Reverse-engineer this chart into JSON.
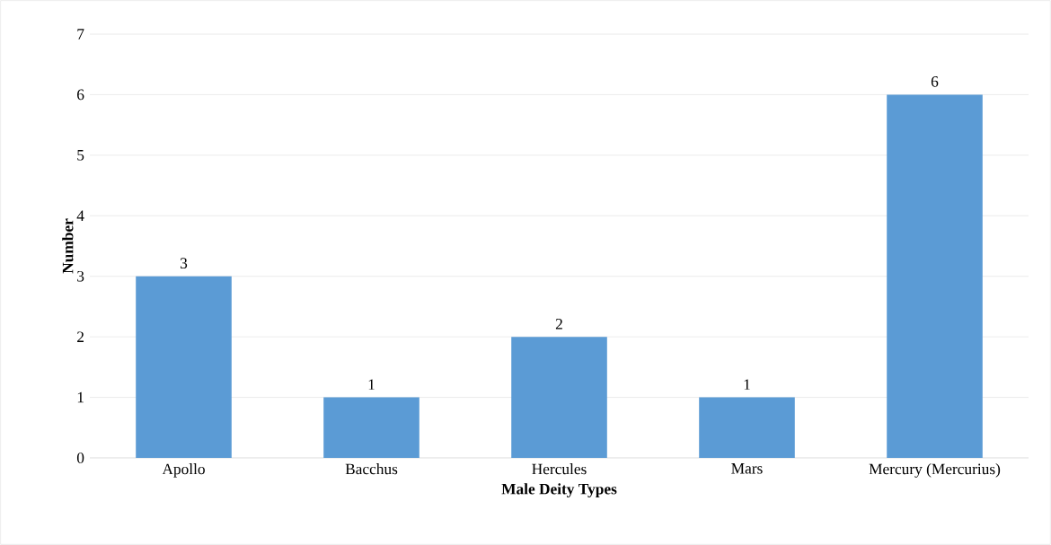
{
  "chart_data": {
    "type": "bar",
    "xlabel": "Male Deity Types",
    "ylabel": "Number",
    "categories": [
      "Apollo",
      "Bacchus",
      "Hercules",
      "Mars",
      "Mercury (Mercurius)"
    ],
    "values": [
      3,
      1,
      2,
      1,
      6
    ],
    "color": "#5b9bd5",
    "ylim": [
      0,
      7
    ],
    "yticks": [
      0,
      1,
      2,
      3,
      4,
      5,
      6,
      7
    ],
    "grid": "y",
    "data_labels": true
  }
}
